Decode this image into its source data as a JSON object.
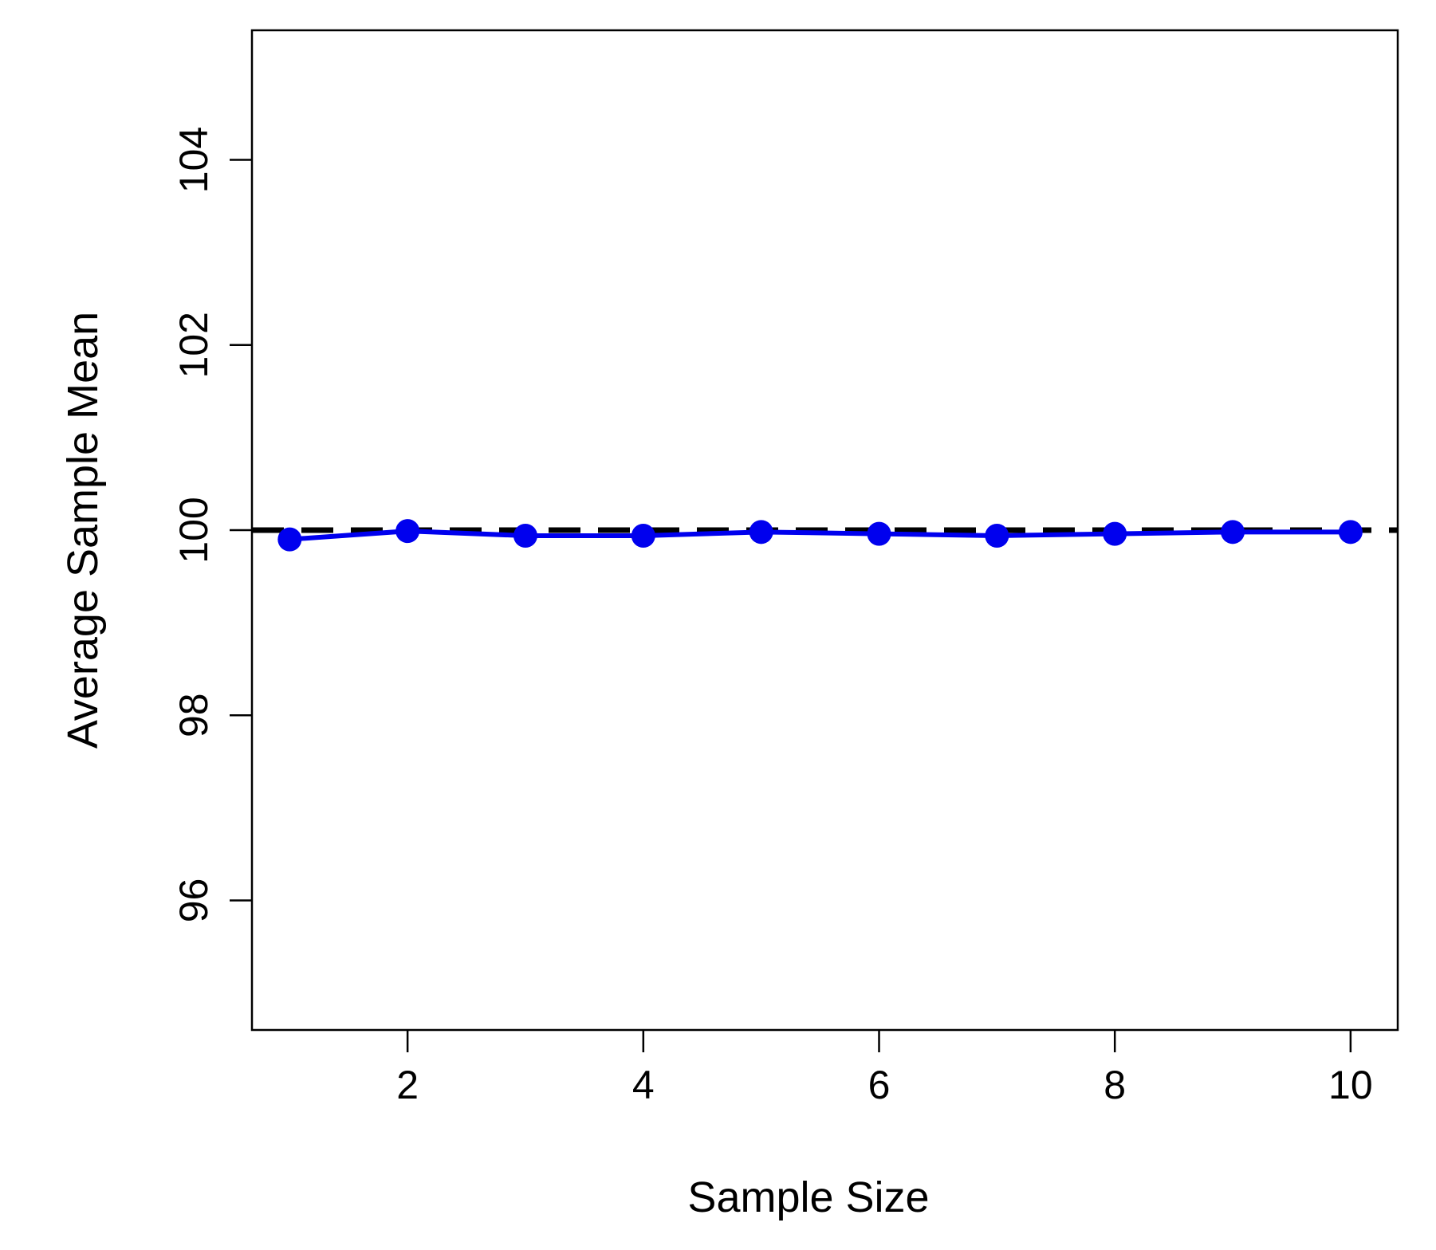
{
  "chart_data": {
    "type": "line",
    "title": "",
    "xlabel": "Sample Size",
    "ylabel": "Average Sample Mean",
    "xlim": [
      0.68,
      10.4
    ],
    "ylim": [
      94.6,
      105.4
    ],
    "x_ticks": [
      2,
      4,
      6,
      8,
      10
    ],
    "y_ticks": [
      96,
      98,
      100,
      102,
      104
    ],
    "grid": false,
    "legend": "none",
    "series": [
      {
        "x": [
          1,
          2,
          3,
          4,
          5,
          6,
          7,
          8,
          9,
          10
        ],
        "values": [
          99.9,
          99.99,
          99.94,
          99.94,
          99.98,
          99.96,
          99.94,
          99.96,
          99.98,
          99.98
        ],
        "color": "#0000ee"
      }
    ],
    "reference_line": {
      "y": 100,
      "style": "dashed",
      "color": "#000000"
    }
  }
}
